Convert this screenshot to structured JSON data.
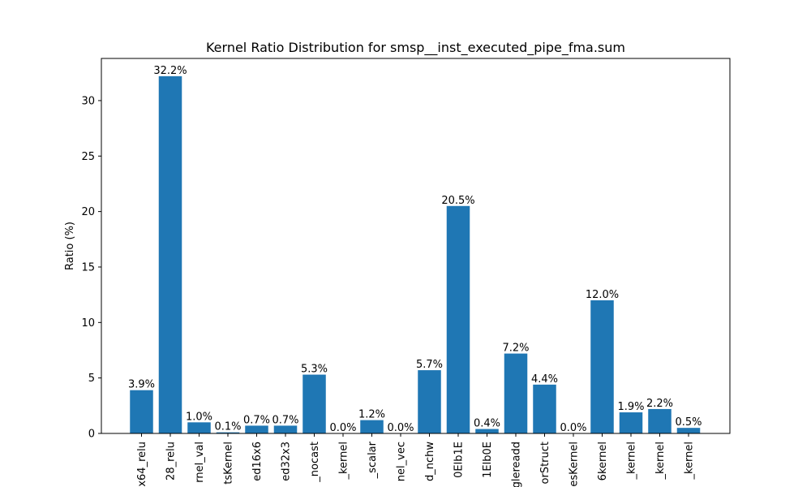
{
  "chart_data": {
    "type": "bar",
    "title": "Kernel Ratio Distribution for smsp__inst_executed_pipe_fma.sum",
    "xlabel": "",
    "ylabel": "Ratio (%)",
    "ylim": [
      0,
      33.8
    ],
    "yticks": [
      0,
      5,
      10,
      15,
      20,
      25,
      30
    ],
    "grid": false,
    "bar_color": "#1f77b4",
    "categories": [
      "x64_relu",
      "28_relu",
      "rnel_val",
      "tsKernel",
      "ed16x6",
      "ed32x3",
      "_nocast",
      "_kernel",
      "_scalar",
      "nel_vec",
      "d_nchw",
      "0Elb1E",
      "1Elb0E",
      "glereadd",
      "orStruct",
      "esKernel",
      "6kernel",
      "_kernel",
      "_kernel",
      "_kernel"
    ],
    "values": [
      3.9,
      32.2,
      1.0,
      0.1,
      0.7,
      0.7,
      5.3,
      0.0,
      1.2,
      0.0,
      5.7,
      20.5,
      0.4,
      7.2,
      4.4,
      0.0,
      12.0,
      1.9,
      2.2,
      0.5
    ],
    "labels": [
      "3.9%",
      "32.2%",
      "1.0%",
      "0.1%",
      "0.7%",
      "0.7%",
      "5.3%",
      "0.0%",
      "1.2%",
      "0.0%",
      "5.7%",
      "20.5%",
      "0.4%",
      "7.2%",
      "4.4%",
      "0.0%",
      "12.0%",
      "1.9%",
      "2.2%",
      "0.5%"
    ]
  }
}
